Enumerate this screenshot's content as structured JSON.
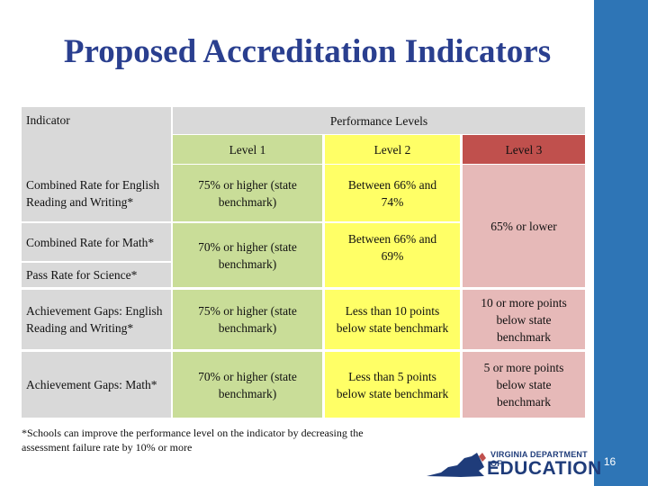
{
  "title": "Proposed Accreditation Indicators",
  "headers": {
    "indicator": "Indicator",
    "performance_levels": "Performance Levels",
    "level1": "Level 1",
    "level2": "Level 2",
    "level3": "Level 3"
  },
  "rows": [
    {
      "indicator": "Combined Rate for English Reading and Writing*",
      "level1": "75% or higher (state benchmark)",
      "level2": "Between 66% and 74%"
    },
    {
      "indicator": "Combined Rate for Math*",
      "level1": "70% or higher (state benchmark)",
      "level2": "Between 66% and 69%"
    },
    {
      "indicator": "Pass Rate for Science*"
    },
    {
      "indicator": "Achievement Gaps: English Reading and Writing*",
      "level1": "75% or higher (state benchmark)",
      "level2": "Less than 10 points below state benchmark",
      "level3": "10 or more points below state benchmark"
    },
    {
      "indicator": "Achievement Gaps: Math*",
      "level1": "70% or higher (state benchmark)",
      "level2": "Less than 5 points below state benchmark",
      "level3": "5 or more points below state benchmark"
    }
  ],
  "level3_merged": "65% or lower",
  "footnote": "*Schools can improve the performance level on the indicator by decreasing the assessment failure rate by 10% or more",
  "logo": {
    "line1": "VIRGINIA DEPARTMENT OF",
    "line2": "EDUCATION"
  },
  "page_number": "16",
  "colors": {
    "title": "#2a3f8f",
    "sidebar": "#2e75b6",
    "header_gray": "#d9d9d9",
    "level1": "#c9dd98",
    "level2": "#ffff66",
    "level3_header": "#c0504d",
    "level3_body": "#e6b9b8"
  }
}
